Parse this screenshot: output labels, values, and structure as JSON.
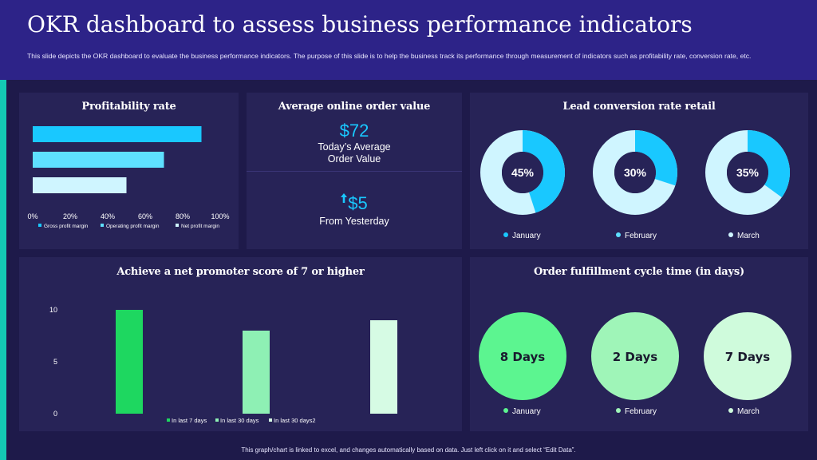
{
  "header": {
    "title": "OKR dashboard to assess business performance indicators",
    "description": "This slide depicts the OKR dashboard to evaluate the business performance indicators. The purpose of this slide is to help the business track its performance through measurement of indicators such as profitability rate, conversion rate, etc."
  },
  "footer": {
    "text": "This graph/chart is linked to excel, and changes automatically based on data. Just left click on it and select “Edit Data”."
  },
  "colors": {
    "background": "#1e1a4a",
    "header": "#2d2388",
    "panel": "#272357",
    "accent": "#14c9b4",
    "cyan": "#19c8ff",
    "light_cyan": "#5ee0ff",
    "pale_cyan": "#cff5ff",
    "green_dark": "#1ed760",
    "green_mid": "#8ef0b4",
    "green_light": "#d6fbe4"
  },
  "profitability": {
    "title": "Profitability rate"
  },
  "order_value": {
    "title": "Average online order value",
    "value": "$72",
    "value_label_line1": "Today’s Average",
    "value_label_line2": "Order Value",
    "change": "$5",
    "change_icon": "arrow-up-icon",
    "change_label": "From Yesterday"
  },
  "lead_conversion": {
    "title": "Lead conversion rate retail"
  },
  "nps": {
    "title": "Achieve a  net promoter score of 7 or higher"
  },
  "fulfillment": {
    "title": "Order fulfillment cycle time (in days)"
  },
  "chart_data": [
    {
      "type": "bar",
      "orientation": "horizontal",
      "title": "Profitability rate",
      "categories": [
        "Gross profit margin",
        "Operating profit margin",
        "Net profit margin"
      ],
      "series": [
        {
          "name": "Gross profit margin",
          "value": 90,
          "color": "#19c8ff"
        },
        {
          "name": "Operating profit margin",
          "value": 70,
          "color": "#5ee0ff"
        },
        {
          "name": "Net profit margin",
          "value": 50,
          "color": "#cff5ff"
        }
      ],
      "xlim": [
        0,
        100
      ],
      "xticks": [
        "0%",
        "20%",
        "40%",
        "60%",
        "80%",
        "100%"
      ],
      "legend": "bottom"
    },
    {
      "type": "pie",
      "subtype": "donut",
      "title": "Lead conversion rate retail",
      "series": [
        {
          "name": "January",
          "value": 45,
          "label": "45%",
          "color": "#19c8ff",
          "legend_color": "#19c8ff"
        },
        {
          "name": "February",
          "value": 30,
          "label": "30%",
          "color": "#19c8ff",
          "legend_color": "#5ee0ff"
        },
        {
          "name": "March",
          "value": 35,
          "label": "35%",
          "color": "#19c8ff",
          "legend_color": "#cff5ff"
        }
      ],
      "remainder_color": "#cff5ff",
      "legend": "bottom"
    },
    {
      "type": "bar",
      "title": "Achieve a  net promoter score of 7 or higher",
      "categories": [
        "In last 7 days",
        "In last 30 days",
        "In last 30 days2"
      ],
      "series": [
        {
          "name": "In last 7 days",
          "value": 10,
          "color": "#1ed760"
        },
        {
          "name": "In last 30 days",
          "value": 8,
          "color": "#8ef0b4"
        },
        {
          "name": "In last 30 days2",
          "value": 9,
          "color": "#d6fbe4"
        }
      ],
      "ylim": [
        0,
        10
      ],
      "yticks": [
        "0",
        "5",
        "10"
      ],
      "legend": "bottom"
    },
    {
      "type": "other",
      "subtype": "circles",
      "title": "Order fulfillment cycle time (in days)",
      "series": [
        {
          "name": "January",
          "value": 8,
          "label": "8 Days",
          "color": "#5cf590"
        },
        {
          "name": "February",
          "value": 2,
          "label": "2 Days",
          "color": "#9ff5b8"
        },
        {
          "name": "March",
          "value": 7,
          "label": "7 Days",
          "color": "#cffbdc"
        }
      ],
      "legend": "bottom"
    }
  ]
}
